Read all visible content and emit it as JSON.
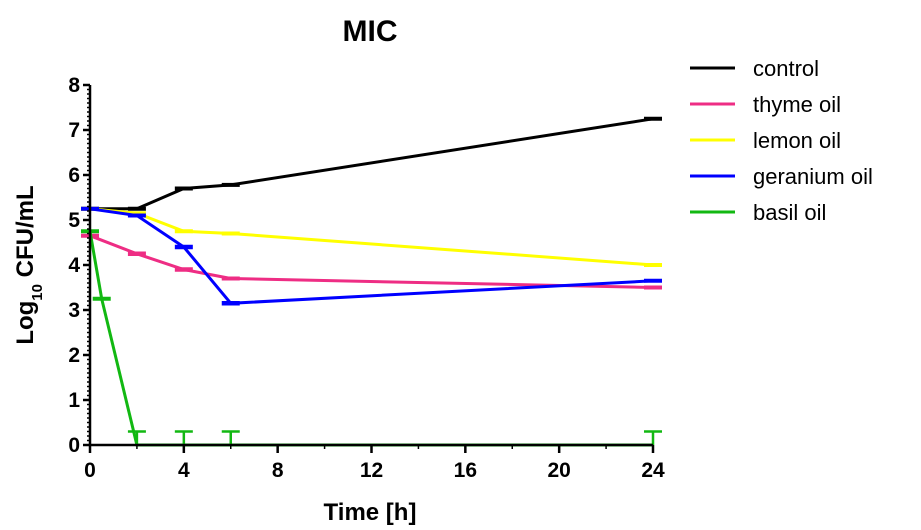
{
  "chart_data": {
    "type": "line",
    "title": "MIC",
    "xlabel": "Time [h]",
    "ylabel_main": "Log",
    "ylabel_sub": "10",
    "ylabel_rest": " CFU/mL",
    "xlim": [
      0,
      24
    ],
    "ylim": [
      0,
      8
    ],
    "x_ticks": [
      0,
      4,
      8,
      12,
      16,
      20,
      24
    ],
    "y_ticks": [
      0,
      1,
      2,
      3,
      4,
      5,
      6,
      7,
      8
    ],
    "grid": false,
    "legend_position": "right",
    "series": [
      {
        "name": "control",
        "color": "#000000",
        "x": [
          0,
          2,
          4,
          6,
          24
        ],
        "y": [
          5.25,
          5.25,
          5.7,
          5.78,
          7.25
        ],
        "err": [
          0.03,
          0.03,
          0.03,
          0.03,
          0.03
        ]
      },
      {
        "name": "thyme oil",
        "color": "#ee2d84",
        "x": [
          0,
          2,
          4,
          6,
          24
        ],
        "y": [
          4.65,
          4.25,
          3.9,
          3.7,
          3.5
        ],
        "err": [
          0.03,
          0.05,
          0.05,
          0.03,
          0.03
        ]
      },
      {
        "name": "lemon oil",
        "color": "#ffff00",
        "x": [
          0,
          2,
          4,
          6,
          24
        ],
        "y": [
          5.25,
          5.15,
          4.75,
          4.7,
          4.0
        ],
        "err": [
          0.03,
          0.03,
          0.03,
          0.03,
          0.03
        ]
      },
      {
        "name": "geranium oil",
        "color": "#0000ff",
        "x": [
          0,
          2,
          4,
          6,
          24
        ],
        "y": [
          5.25,
          5.1,
          4.4,
          3.15,
          3.65
        ],
        "err": [
          0.03,
          0.03,
          0.05,
          0.05,
          0.03
        ]
      },
      {
        "name": "basil oil",
        "color": "#12b812",
        "x": [
          0,
          0.5,
          2,
          4,
          6,
          24
        ],
        "y": [
          4.75,
          3.25,
          0,
          0,
          0,
          0
        ],
        "err": [
          0.03,
          0.03,
          0.3,
          0.3,
          0.3,
          0.3
        ]
      }
    ]
  }
}
